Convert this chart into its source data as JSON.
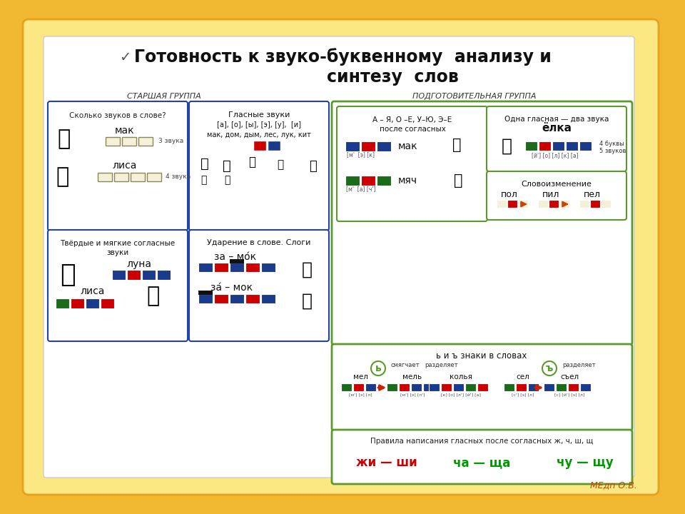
{
  "title_line1": "Готовность к звуко-буквенному  анализу и",
  "title_line2": "синтезу  слов",
  "bg_color": "#f0b830",
  "paper_color": "#ffffff",
  "blue_dark": "#1a3a8c",
  "red_color": "#cc0000",
  "green_dark": "#1a6b1a",
  "black": "#000000",
  "panel_border_blue": "#2244aa",
  "panel_border_green": "#5a9a2a",
  "panel_bg": "#ffffff",
  "starshaya_label": "СТАРШАЯ ГРУППА",
  "podgotovitelnaya_label": "ПОДГОТОВИТЕЛЬНАЯ ГРУППА",
  "box1_title": "Сколько звуков в слове?",
  "box1_word1": "мак",
  "box1_label1": "3 звука",
  "box1_word2": "лиса",
  "box1_label2": "4 звука",
  "box2_title1": "Гласные звуки",
  "box2_title2": "[а], [о], [ы], [э], [у],  [и]",
  "box2_subtitle": "мак, дом, дым, лес, лук, кит",
  "box3_title1": "Твёрдые и мягкие согласные",
  "box3_title2": "звуки",
  "box3_word1": "луна",
  "box3_word2": "лиса",
  "box4_title": "Ударение в слове. Слоги",
  "box4_word1": "за – мо́к",
  "box4_word2": "за́ – мок",
  "pg_box1_title1": "А – Я, О –Е, У–Ю, Э–Е",
  "pg_box1_title2": "после согласных",
  "pg_box1_word1": "мак",
  "pg_box1_label1": "[м'  [э] [к]",
  "pg_box1_word2": "мяч",
  "pg_box1_label2": "[м'  [а] [ч']",
  "pg_box2_title1": "Одна гласная — два звука",
  "pg_box2_word": "ёлка",
  "pg_box2_label1": "4 буквы",
  "pg_box2_label2": "5 звуков",
  "pg_box2_phonemes": "[й'] [о] [л] [к] [а]",
  "pg_box3_title": "Словоизменение",
  "pg_box3_w1": "пол",
  "pg_box3_w2": "пил",
  "pg_box3_w3": "пел",
  "soft_sign_title": "ь и ъ знаки в словах",
  "soft_sign_b": "ь",
  "soft_sign_label1": "смягчает",
  "soft_sign_label2": "разделяет",
  "hard_sign_b": "ъ",
  "hard_sign_label": "разделяет",
  "words_row": [
    "мел",
    "мель",
    "колья",
    "сел",
    "съел"
  ],
  "pravila_title": "Правила написания гласных после согласных ж, ч, ш, щ",
  "pravila_rules": [
    "жи — ши",
    "ча — ща",
    "чу — щу"
  ],
  "pravila_colors": [
    "#cc0000",
    "#009900",
    "#009900"
  ],
  "watermark": "МЕдп О.В."
}
